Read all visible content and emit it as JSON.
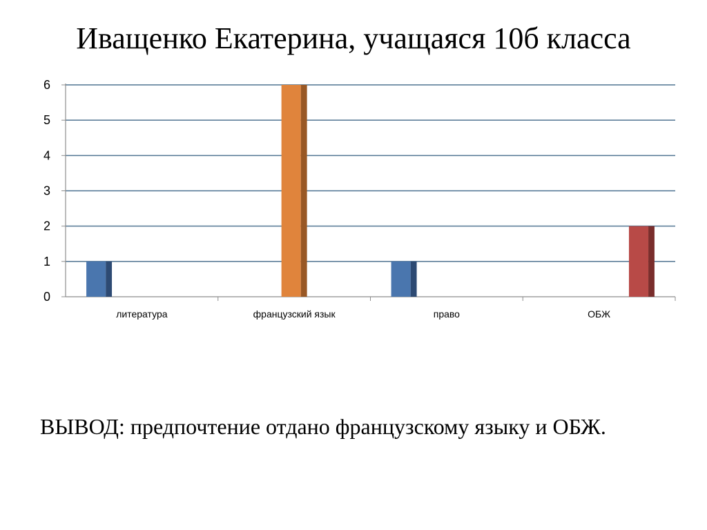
{
  "slide": {
    "title": "Иващенко Екатерина, учащаяся 10б класса",
    "conclusion": "ВЫВОД: предпочтение отдано французскому языку и ОБЖ."
  },
  "chart_data": {
    "type": "bar",
    "categories": [
      "литература",
      "французский язык",
      "право",
      "ОБЖ"
    ],
    "series": [
      {
        "values": [
          1,
          0,
          1,
          0
        ],
        "color": "#4a76ae",
        "side_color": "#2d4a73"
      },
      {
        "values": [
          0,
          6,
          0,
          0
        ],
        "color": "#e0843c",
        "side_color": "#995825"
      },
      {
        "values": [
          0,
          0,
          0,
          2
        ],
        "color": "#b84a47",
        "side_color": "#7a2e2c"
      }
    ],
    "y_ticks": [
      "0",
      "1",
      "2",
      "3",
      "4",
      "5",
      "6"
    ],
    "ylim": [
      0,
      6
    ],
    "grid": true,
    "gridline_color": "#4f7391",
    "legend": "none",
    "title": "",
    "xlabel": "",
    "ylabel": ""
  }
}
